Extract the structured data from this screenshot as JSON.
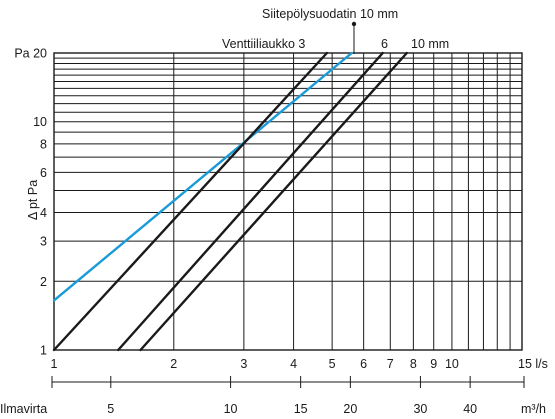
{
  "chart_data": {
    "type": "line",
    "x_scale": "log",
    "y_scale": "log",
    "xlabel": "l/s",
    "ylabel": "Δ pt Pa",
    "y_unit_label": "Pa",
    "xlim": [
      1,
      15
    ],
    "ylim": [
      1,
      20
    ],
    "x_ticks": [
      1,
      2,
      3,
      4,
      5,
      6,
      7,
      8,
      9,
      10,
      15
    ],
    "x_tick_labels": [
      "1",
      "2",
      "3",
      "4",
      "5",
      "6",
      "7",
      "8",
      "9",
      "10",
      "15"
    ],
    "x_last_tick_label": "15 l/s",
    "y_ticks": [
      1,
      2,
      3,
      4,
      6,
      8,
      10,
      20
    ],
    "y_tick_labels": [
      "1",
      "2",
      "3",
      "4",
      "6",
      "8",
      "10",
      "20"
    ],
    "y_top_tick_label": "Pa 20",
    "secondary_axis": {
      "name": "Ilmavirta",
      "unit": "m³/h",
      "ticks": [
        5,
        10,
        15,
        20,
        30,
        40
      ],
      "tick_labels": [
        "5",
        "10",
        "15",
        "20",
        "30",
        "40"
      ],
      "factor_to_primary": 0.2778
    },
    "series": [
      {
        "name": "Siitepölysuodatin 10 mm",
        "color": "#1a9bd7",
        "x": [
          1.0,
          5.6
        ],
        "y": [
          1.65,
          20
        ]
      },
      {
        "name": "Venttiiliaukko 3",
        "color": "#1a1a1a",
        "x": [
          1.0,
          4.85
        ],
        "y": [
          1.0,
          20
        ]
      },
      {
        "name": "6",
        "color": "#1a1a1a",
        "x": [
          1.45,
          6.7
        ],
        "y": [
          1.0,
          20
        ]
      },
      {
        "name": "10 mm",
        "color": "#1a1a1a",
        "x": [
          1.65,
          7.7
        ],
        "y": [
          1.0,
          20
        ]
      }
    ],
    "annotations": {
      "top_label": "Siitepölysuodatin 10 mm",
      "line_label_3": "Venttiiliaukko 3",
      "line_label_6": "6",
      "line_label_10": "10 mm"
    },
    "grid": true
  }
}
